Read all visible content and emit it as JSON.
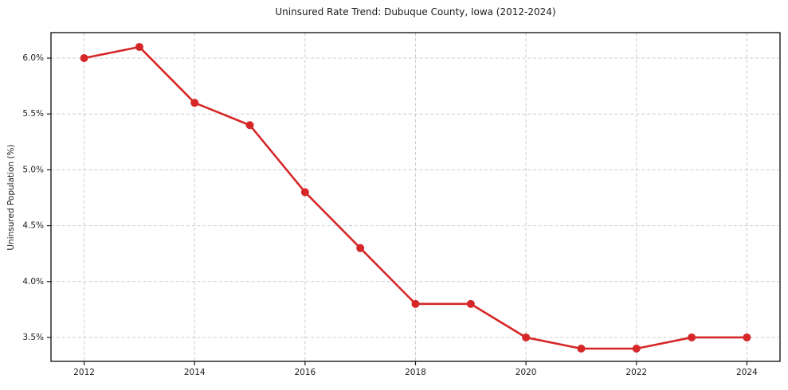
{
  "chart_data": {
    "type": "line",
    "title": "Uninsured Rate Trend: Dubuque County, Iowa (2012-2024)",
    "xlabel": "",
    "ylabel": "Uninsured Population (%)",
    "x": [
      2012,
      2013,
      2014,
      2015,
      2016,
      2017,
      2018,
      2019,
      2020,
      2021,
      2022,
      2023,
      2024
    ],
    "values": [
      6.0,
      6.1,
      5.6,
      5.4,
      4.8,
      4.3,
      3.8,
      3.8,
      3.5,
      3.4,
      3.4,
      3.5,
      3.5
    ],
    "xlim": [
      2011.4,
      2024.6
    ],
    "ylim": [
      3.286,
      6.228
    ],
    "xticks": {
      "values": [
        2012,
        2014,
        2016,
        2018,
        2020,
        2022,
        2024
      ],
      "labels": [
        "2012",
        "2014",
        "2016",
        "2018",
        "2020",
        "2022",
        "2024"
      ]
    },
    "yticks": {
      "values": [
        3.5,
        4.0,
        4.5,
        5.0,
        5.5,
        6.0
      ],
      "labels": [
        "3.5%",
        "4.0%",
        "4.5%",
        "5.0%",
        "5.5%",
        "6.0%"
      ]
    },
    "grid": true,
    "grid_style": "dashed",
    "legend": false,
    "line_color": "#d62728",
    "marker": "circle",
    "grid_color": "#cccccc",
    "frame_color": "#1a1a1a",
    "text_color": "#1c1c1c",
    "background": "#ffffff"
  }
}
